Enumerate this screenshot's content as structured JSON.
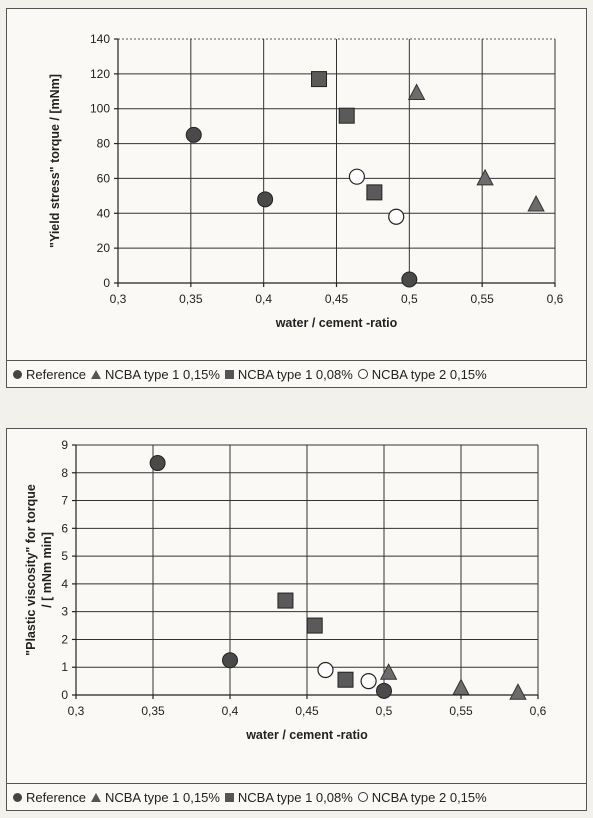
{
  "chart_data": [
    {
      "type": "scatter",
      "xlabel": "water / cement -ratio",
      "ylabel": "\"Yield stress\" torque / [mNm]",
      "xlim": [
        0.3,
        0.6
      ],
      "ylim": [
        0,
        140
      ],
      "xticks": [
        0.3,
        0.35,
        0.4,
        0.45,
        0.5,
        0.55,
        0.6
      ],
      "xtick_labels": [
        "0,3",
        "0,35",
        "0,4",
        "0,45",
        "0,5",
        "0,55",
        "0,6"
      ],
      "yticks": [
        0,
        20,
        40,
        60,
        80,
        100,
        120,
        140
      ],
      "ytick_labels": [
        "0",
        "20",
        "40",
        "60",
        "80",
        "100",
        "120",
        "140"
      ],
      "grid": true,
      "legend_position": "bottom",
      "series": [
        {
          "name": "Reference",
          "marker": "circle-filled",
          "x": [
            0.352,
            0.401,
            0.5
          ],
          "y": [
            85,
            48,
            2
          ]
        },
        {
          "name": "NCBA type 1 0,15%",
          "marker": "triangle",
          "x": [
            0.505,
            0.552,
            0.587
          ],
          "y": [
            109,
            60,
            45
          ]
        },
        {
          "name": "NCBA type 1 0,08%",
          "marker": "square",
          "x": [
            0.438,
            0.457,
            0.476
          ],
          "y": [
            117,
            96,
            52
          ]
        },
        {
          "name": "NCBA type 2 0,15%",
          "marker": "circle-open",
          "x": [
            0.464,
            0.491
          ],
          "y": [
            61,
            38
          ]
        }
      ]
    },
    {
      "type": "scatter",
      "xlabel": "water / cement -ratio",
      "ylabel": "\"Plastic viscosity\" for torque / [ mNm min]",
      "xlim": [
        0.3,
        0.6
      ],
      "ylim": [
        0,
        9
      ],
      "xticks": [
        0.3,
        0.35,
        0.4,
        0.45,
        0.5,
        0.55,
        0.6
      ],
      "xtick_labels": [
        "0,3",
        "0,35",
        "0,4",
        "0,45",
        "0,5",
        "0,55",
        "0,6"
      ],
      "yticks": [
        0,
        1,
        2,
        3,
        4,
        5,
        6,
        7,
        8,
        9
      ],
      "ytick_labels": [
        "0",
        "1",
        "2",
        "3",
        "4",
        "5",
        "6",
        "7",
        "8",
        "9"
      ],
      "grid": true,
      "legend_position": "bottom",
      "series": [
        {
          "name": "Reference",
          "marker": "circle-filled",
          "x": [
            0.353,
            0.4,
            0.5
          ],
          "y": [
            8.35,
            1.25,
            0.15
          ]
        },
        {
          "name": "NCBA type 1 0,15%",
          "marker": "triangle",
          "x": [
            0.503,
            0.55,
            0.587
          ],
          "y": [
            0.8,
            0.25,
            0.08
          ]
        },
        {
          "name": "NCBA type 1 0,08%",
          "marker": "square",
          "x": [
            0.436,
            0.455,
            0.475
          ],
          "y": [
            3.4,
            2.5,
            0.55
          ]
        },
        {
          "name": "NCBA type 2 0,15%",
          "marker": "circle-open",
          "x": [
            0.462,
            0.49
          ],
          "y": [
            0.9,
            0.5
          ]
        }
      ]
    }
  ]
}
